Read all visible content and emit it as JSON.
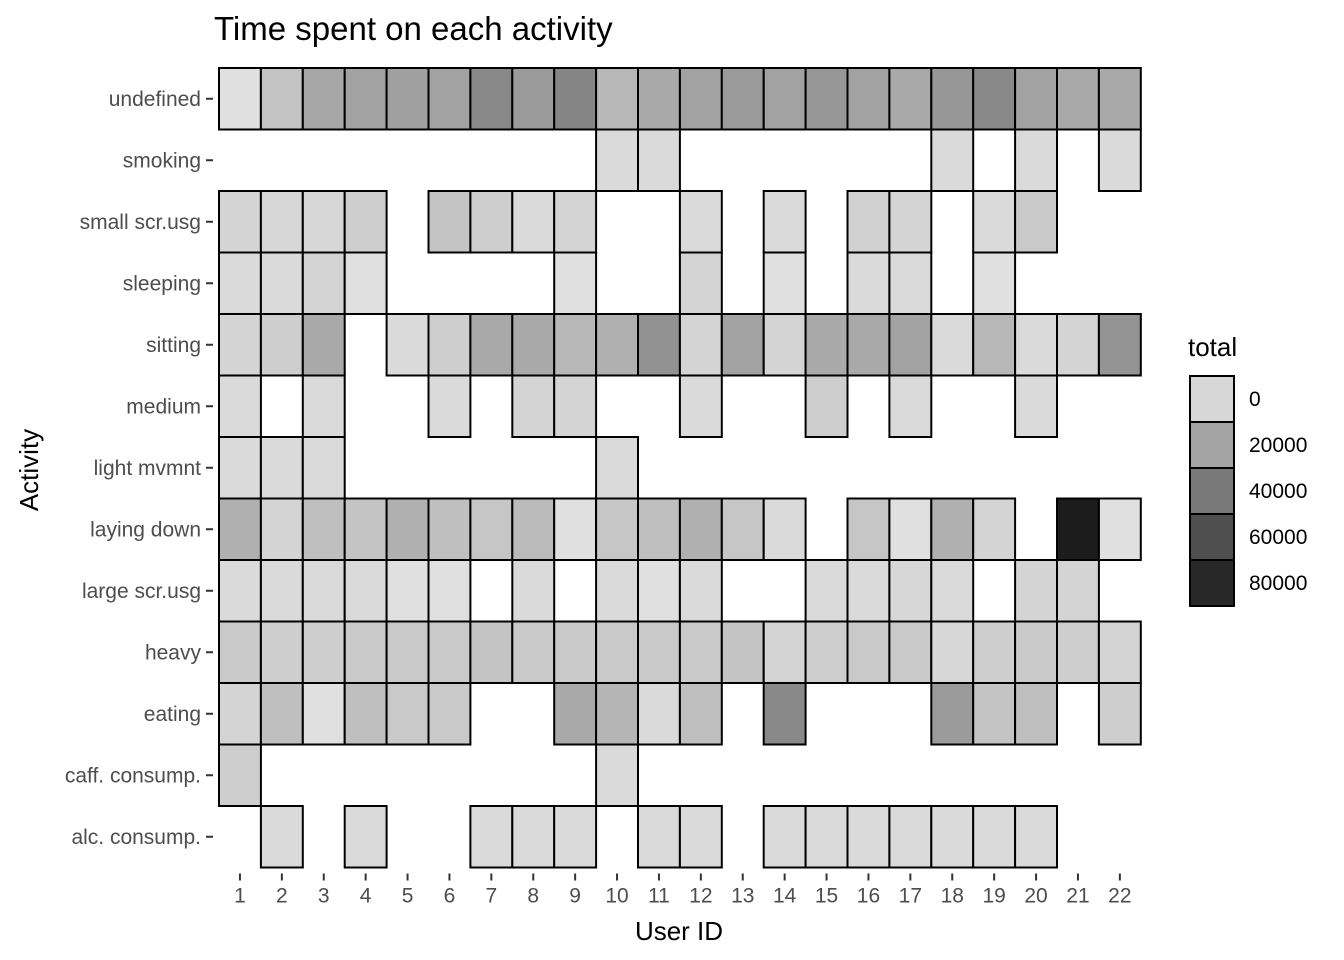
{
  "chart_data": {
    "type": "heatmap",
    "title": "Time spent on each activity",
    "xlabel": "User ID",
    "ylabel": "Activity",
    "x_categories": [
      "1",
      "2",
      "3",
      "4",
      "5",
      "6",
      "7",
      "8",
      "9",
      "10",
      "11",
      "12",
      "13",
      "14",
      "15",
      "16",
      "17",
      "18",
      "19",
      "20",
      "21",
      "22"
    ],
    "y_categories": [
      "undefined",
      "smoking",
      "small scr.usg",
      "sleeping",
      "sitting",
      "medium",
      "light mvmnt",
      "laying down",
      "large scr.usg",
      "heavy",
      "eating",
      "caff. consump.",
      "alc. consump."
    ],
    "values": [
      [
        3000,
        13000,
        25000,
        27000,
        28000,
        27000,
        38000,
        30000,
        40000,
        18000,
        24000,
        27000,
        30000,
        27000,
        32000,
        27000,
        24000,
        32000,
        38000,
        27000,
        24000,
        24000
      ],
      [
        null,
        null,
        null,
        null,
        null,
        null,
        null,
        null,
        null,
        5000,
        5000,
        null,
        null,
        null,
        null,
        null,
        null,
        5000,
        null,
        5000,
        null,
        5000
      ],
      [
        7000,
        6000,
        6000,
        9000,
        null,
        13000,
        9000,
        5000,
        7000,
        null,
        null,
        5000,
        null,
        5000,
        null,
        8000,
        7000,
        null,
        5000,
        11000,
        null,
        null
      ],
      [
        5000,
        5000,
        7000,
        3000,
        null,
        null,
        null,
        null,
        3000,
        null,
        null,
        7000,
        null,
        3000,
        null,
        5000,
        5000,
        null,
        3000,
        null,
        null,
        null
      ],
      [
        7000,
        9000,
        24000,
        null,
        5000,
        9000,
        24000,
        24000,
        18000,
        21000,
        34000,
        7000,
        27000,
        7000,
        24000,
        24000,
        27000,
        5000,
        18000,
        5000,
        7000,
        33000
      ],
      [
        5000,
        null,
        5000,
        null,
        null,
        5000,
        null,
        7000,
        7000,
        null,
        null,
        5000,
        null,
        null,
        9000,
        null,
        5000,
        null,
        null,
        5000,
        null,
        null
      ],
      [
        5000,
        5000,
        5000,
        null,
        null,
        null,
        null,
        null,
        null,
        5000,
        null,
        null,
        null,
        null,
        null,
        null,
        null,
        null,
        null,
        null,
        null,
        null
      ],
      [
        21000,
        7000,
        15000,
        13000,
        21000,
        15000,
        12000,
        17000,
        3000,
        12000,
        15000,
        21000,
        12000,
        5000,
        null,
        12000,
        3000,
        21000,
        7000,
        null,
        92000,
        3000
      ],
      [
        5000,
        5000,
        5000,
        5000,
        3000,
        3000,
        null,
        5000,
        null,
        5000,
        3000,
        5000,
        null,
        null,
        5000,
        5000,
        6000,
        5000,
        null,
        7000,
        7000,
        null
      ],
      [
        11000,
        9000,
        9000,
        11000,
        11000,
        11000,
        13000,
        11000,
        11000,
        11000,
        11000,
        11000,
        13000,
        7000,
        9000,
        11000,
        11000,
        6000,
        9000,
        11000,
        9000,
        7000
      ],
      [
        7000,
        15000,
        3000,
        15000,
        11000,
        11000,
        null,
        null,
        24000,
        19000,
        5000,
        15000,
        null,
        38000,
        null,
        null,
        null,
        30000,
        13000,
        15000,
        null,
        9000
      ],
      [
        9000,
        null,
        null,
        null,
        null,
        null,
        null,
        null,
        null,
        5000,
        null,
        null,
        null,
        null,
        null,
        null,
        null,
        null,
        null,
        null,
        null,
        null
      ],
      [
        null,
        5000,
        null,
        5000,
        null,
        null,
        5000,
        5000,
        5000,
        null,
        5000,
        5000,
        null,
        5000,
        5000,
        5000,
        5000,
        5000,
        5000,
        5000,
        null,
        null
      ]
    ],
    "legend": {
      "title": "total",
      "breaks": [
        0,
        20000,
        40000,
        60000,
        80000
      ],
      "labels": [
        "0",
        "20000",
        "40000",
        "60000",
        "80000"
      ],
      "placement": "right"
    },
    "color_low": "#ebebeb",
    "color_high": "#1c1c1c",
    "tile_border": "#000000",
    "grid": false
  }
}
